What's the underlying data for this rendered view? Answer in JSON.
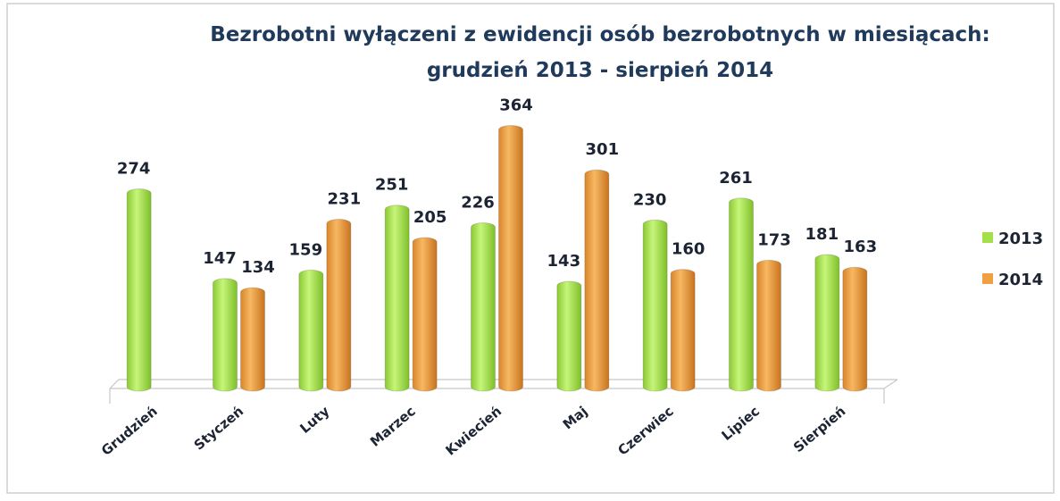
{
  "chart_data": {
    "type": "bar",
    "title": [
      "Bezrobotni wyłączeni z ewidencji osób bezrobotnych w miesiącach:",
      "grudzień  2013 - sierpień 2014"
    ],
    "categories": [
      "Grudzień",
      "Styczeń",
      "Luty",
      "Marzec",
      "Kwiecień",
      "Maj",
      "Czerwiec",
      "Lipiec",
      "Sierpień"
    ],
    "series": [
      {
        "name": "2013",
        "color": "#a4e04a",
        "values": [
          274,
          147,
          159,
          251,
          226,
          143,
          230,
          261,
          181
        ]
      },
      {
        "name": "2014",
        "color": "#f0a042",
        "values": [
          null,
          134,
          231,
          205,
          364,
          301,
          160,
          173,
          163
        ]
      }
    ],
    "legend": "right"
  }
}
